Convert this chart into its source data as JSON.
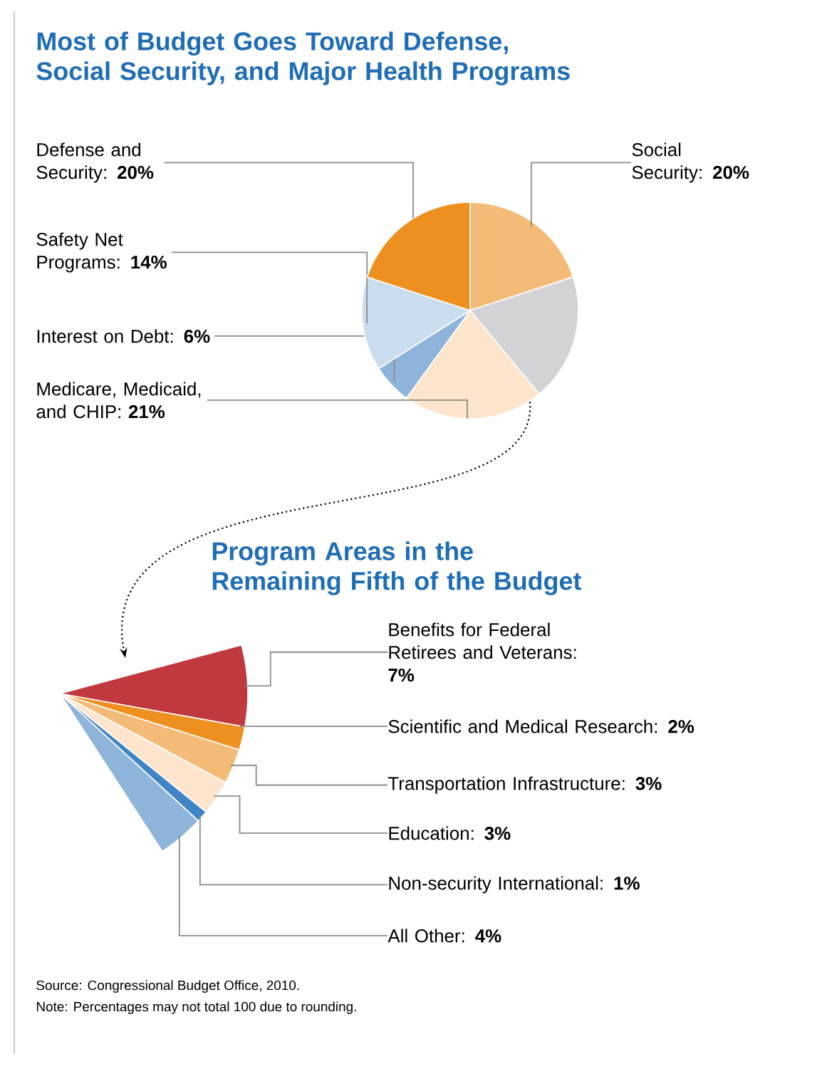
{
  "chart_data": [
    {
      "type": "pie",
      "title": "Most of Budget Goes Toward Defense, Social Security, and Major Health Programs",
      "categories": [
        "Social Security: **20%**",
        null,
        "Medicare, Medicaid, and CHIP: **21%**",
        "Interest on Debt: **6%**",
        "Safety Net Programs: **14%**",
        "Defense and Security: **20%**"
      ],
      "values": [
        20,
        19,
        21,
        6,
        14,
        20
      ],
      "colors": [
        "#f4bb78",
        "#d3d3d5",
        "#fce5cc",
        "#8fb4d9",
        "#c9ddef",
        "#ee9020"
      ]
    },
    {
      "type": "pie",
      "title": "Program Areas in the Remaining Fifth of the Budget",
      "categories": [
        "Benefits for Federal Retirees and Veterans: **7%**",
        "Scientific and Medical Research: **2%**",
        "Transportation Infrastructure: **3%**",
        "Education: **3%**",
        "Non-security International: **1%**",
        "All Other: **4%**"
      ],
      "values": [
        7,
        2,
        3,
        3,
        1,
        4
      ],
      "colors": [
        "#c0393f",
        "#ee9020",
        "#f4bb78",
        "#fce5cc",
        "#3f85c6",
        "#8fb4d9"
      ],
      "annotations": [
        "Source: Congressional Budget Office, 2010.",
        "Note: Percentages may not total 100 due to rounding."
      ]
    }
  ]
}
